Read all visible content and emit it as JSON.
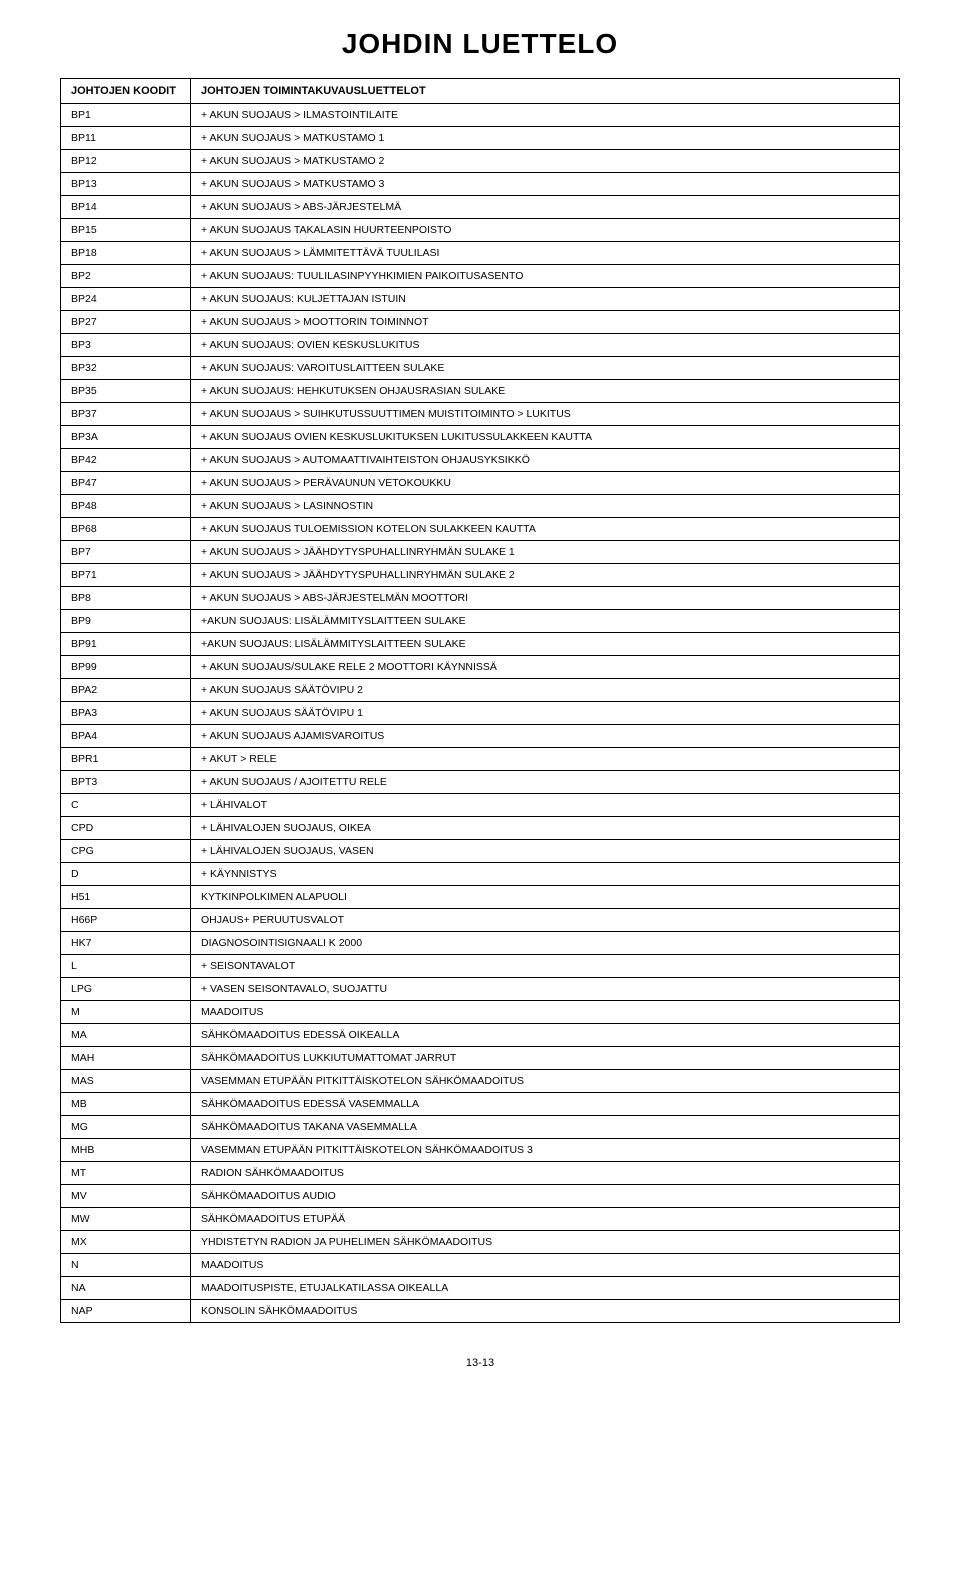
{
  "title": "JOHDIN LUETTELO",
  "columns": [
    "JOHTOJEN KOODIT",
    "JOHTOJEN TOIMINTAKUVAUSLUETTELOT"
  ],
  "rows": [
    [
      "BP1",
      "+ AKUN SUOJAUS > ILMASTOINTILAITE"
    ],
    [
      "BP11",
      "+ AKUN SUOJAUS > MATKUSTAMO 1"
    ],
    [
      "BP12",
      "+ AKUN SUOJAUS > MATKUSTAMO 2"
    ],
    [
      "BP13",
      "+ AKUN SUOJAUS > MATKUSTAMO 3"
    ],
    [
      "BP14",
      "+ AKUN SUOJAUS > ABS-JÄRJESTELMÄ"
    ],
    [
      "BP15",
      "+ AKUN SUOJAUS TAKALASIN HUURTEENPOISTO"
    ],
    [
      "BP18",
      "+ AKUN SUOJAUS > LÄMMITETTÄVÄ TUULILASI"
    ],
    [
      "BP2",
      "+ AKUN SUOJAUS: TUULILASINPYYHKIMIEN PAIKOITUSASENTO"
    ],
    [
      "BP24",
      "+ AKUN SUOJAUS: KULJETTAJAN ISTUIN"
    ],
    [
      "BP27",
      "+ AKUN SUOJAUS > MOOTTORIN TOIMINNOT"
    ],
    [
      "BP3",
      "+ AKUN SUOJAUS: OVIEN KESKUSLUKITUS"
    ],
    [
      "BP32",
      "+ AKUN SUOJAUS: VAROITUSLAITTEEN SULAKE"
    ],
    [
      "BP35",
      "+ AKUN SUOJAUS: HEHKUTUKSEN OHJAUSRASIAN SULAKE"
    ],
    [
      "BP37",
      "+ AKUN SUOJAUS > SUIHKUTUSSUUTTIMEN MUISTITOIMINTO > LUKITUS"
    ],
    [
      "BP3A",
      "+ AKUN SUOJAUS OVIEN KESKUSLUKITUKSEN LUKITUSSULAKKEEN KAUTTA"
    ],
    [
      "BP42",
      "+ AKUN SUOJAUS > AUTOMAATTIVAIHTEISTON OHJAUSYKSIKKÖ"
    ],
    [
      "BP47",
      "+ AKUN SUOJAUS > PERÄVAUNUN VETOKOUKKU"
    ],
    [
      "BP48",
      "+ AKUN SUOJAUS > LASINNOSTIN"
    ],
    [
      "BP68",
      "+ AKUN SUOJAUS TULOEMISSION KOTELON SULAKKEEN KAUTTA"
    ],
    [
      "BP7",
      "+ AKUN SUOJAUS > JÄÄHDYTYSPUHALLINRYHMÄN SULAKE 1"
    ],
    [
      "BP71",
      "+ AKUN SUOJAUS > JÄÄHDYTYSPUHALLINRYHMÄN SULAKE 2"
    ],
    [
      "BP8",
      "+ AKUN SUOJAUS > ABS-JÄRJESTELMÄN MOOTTORI"
    ],
    [
      "BP9",
      "+AKUN SUOJAUS: LISÄLÄMMITYSLAITTEEN SULAKE"
    ],
    [
      "BP91",
      "+AKUN SUOJAUS: LISÄLÄMMITYSLAITTEEN SULAKE"
    ],
    [
      "BP99",
      "+ AKUN SUOJAUS/SULAKE RELE 2 MOOTTORI KÄYNNISSÄ"
    ],
    [
      "BPA2",
      "+ AKUN SUOJAUS SÄÄTÖVIPU 2"
    ],
    [
      "BPA3",
      "+ AKUN SUOJAUS SÄÄTÖVIPU 1"
    ],
    [
      "BPA4",
      "+ AKUN SUOJAUS AJAMISVAROITUS"
    ],
    [
      "BPR1",
      "+ AKUT > RELE"
    ],
    [
      "BPT3",
      "+ AKUN SUOJAUS / AJOITETTU RELE"
    ],
    [
      "C",
      "+ LÄHIVALOT"
    ],
    [
      "CPD",
      "+ LÄHIVALOJEN SUOJAUS, OIKEA"
    ],
    [
      "CPG",
      "+ LÄHIVALOJEN SUOJAUS, VASEN"
    ],
    [
      "D",
      "+ KÄYNNISTYS"
    ],
    [
      "H51",
      "KYTKINPOLKIMEN ALAPUOLI"
    ],
    [
      "H66P",
      "OHJAUS+ PERUUTUSVALOT"
    ],
    [
      "HK7",
      "DIAGNOSOINTISIGNAALI K 2000"
    ],
    [
      "L",
      "+ SEISONTAVALOT"
    ],
    [
      "LPG",
      "+ VASEN SEISONTAVALO, SUOJATTU"
    ],
    [
      "M",
      "MAADOITUS"
    ],
    [
      "MA",
      "SÄHKÖMAADOITUS EDESSÄ OIKEALLA"
    ],
    [
      "MAH",
      "SÄHKÖMAADOITUS LUKKIUTUMATTOMAT JARRUT"
    ],
    [
      "MAS",
      "VASEMMAN ETUPÄÄN PITKITTÄISKOTELON SÄHKÖMAADOITUS"
    ],
    [
      "MB",
      "SÄHKÖMAADOITUS EDESSÄ VASEMMALLA"
    ],
    [
      "MG",
      "SÄHKÖMAADOITUS TAKANA VASEMMALLA"
    ],
    [
      "MHB",
      "VASEMMAN ETUPÄÄN PITKITTÄISKOTELON SÄHKÖMAADOITUS 3"
    ],
    [
      "MT",
      "RADION SÄHKÖMAADOITUS"
    ],
    [
      "MV",
      "SÄHKÖMAADOITUS AUDIO"
    ],
    [
      "MW",
      "SÄHKÖMAADOITUS ETUPÄÄ"
    ],
    [
      "MX",
      "YHDISTETYN RADION JA PUHELIMEN SÄHKÖMAADOITUS"
    ],
    [
      "N",
      "MAADOITUS"
    ],
    [
      "NA",
      "MAADOITUSPISTE, ETUJALKATILASSA OIKEALLA"
    ],
    [
      "NAP",
      "KONSOLIN SÄHKÖMAADOITUS"
    ]
  ],
  "footer": "13-13"
}
